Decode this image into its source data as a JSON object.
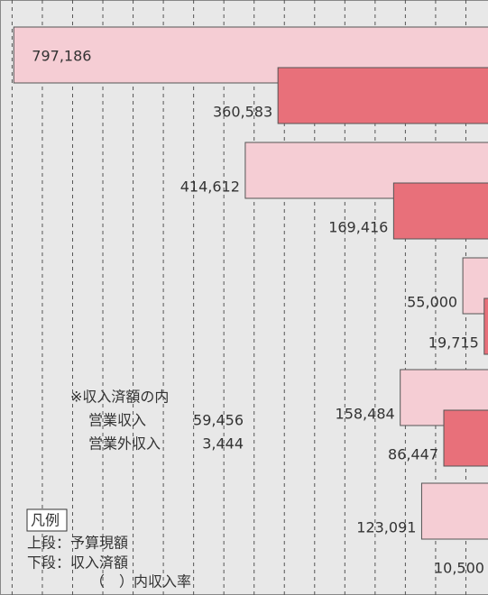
{
  "chart_data": {
    "type": "hbar-reverse",
    "series": [
      {
        "name": "上段：予算現額",
        "color": "#f5cdd4",
        "values": [
          797186,
          414612,
          55000,
          158484,
          123091
        ],
        "value_labels": [
          "797,186",
          "414,612",
          "55,000",
          "158,484",
          "123,091"
        ]
      },
      {
        "name": "下段：収入済額",
        "color": "#e8707a",
        "values": [
          360583,
          169416,
          19715,
          86447,
          10500
        ],
        "value_labels": [
          "360,583",
          "169,416",
          "19,715",
          "86,447",
          "10,500"
        ]
      }
    ],
    "xlim": [
      0,
      820000
    ],
    "xticks": [
      0,
      50000,
      100000,
      150000,
      200000,
      250000,
      300000,
      350000,
      400000,
      450000,
      500000,
      550000,
      600000,
      650000,
      700000,
      750000,
      800000
    ],
    "grid": true,
    "note": {
      "title": "※収入済額の内",
      "items": [
        {
          "label": "営業収入",
          "value": 59456,
          "value_label": "59,456"
        },
        {
          "label": "営業外収入",
          "value": 3444,
          "value_label": "3,444"
        }
      ]
    },
    "legend": {
      "title": "凡例",
      "rate_note": "（　）内収入率"
    }
  }
}
